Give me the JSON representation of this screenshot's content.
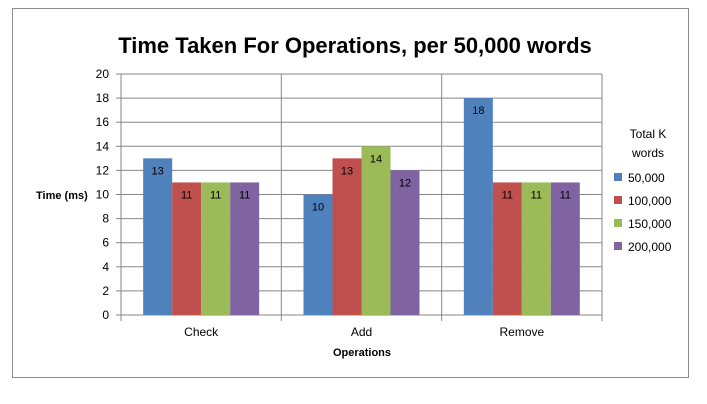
{
  "chart_data": {
    "type": "bar",
    "title": "Time Taken For Operations, per 50,000 words",
    "xlabel": "Operations",
    "ylabel": "Time (ms)",
    "categories": [
      "Check",
      "Add",
      "Remove"
    ],
    "ylim": [
      0,
      20
    ],
    "yticks": [
      0,
      2,
      4,
      6,
      8,
      10,
      12,
      14,
      16,
      18,
      20
    ],
    "grid": true,
    "legend_title": [
      "Total K",
      "words"
    ],
    "legend_position": "right",
    "series": [
      {
        "name": "50,000",
        "color": "#4f81bd",
        "values": [
          13,
          10,
          18
        ]
      },
      {
        "name": "100,000",
        "color": "#c0504d",
        "values": [
          11,
          13,
          11
        ]
      },
      {
        "name": "150,000",
        "color": "#9bbb59",
        "values": [
          11,
          14,
          11
        ]
      },
      {
        "name": "200,000",
        "color": "#8064a2",
        "values": [
          11,
          12,
          11
        ]
      }
    ]
  }
}
